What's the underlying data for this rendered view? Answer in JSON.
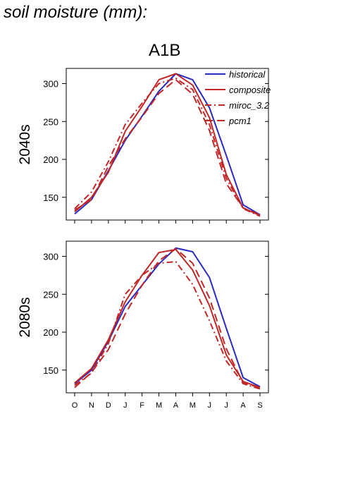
{
  "header": {
    "title": "soil moisture (mm):",
    "scenario": "A1B"
  },
  "colors": {
    "historical": "#2a2ac0",
    "scenario": "#c02626"
  },
  "chart_data": [
    {
      "type": "line",
      "panel_label": "2040s",
      "categories": [
        "O",
        "N",
        "D",
        "J",
        "F",
        "M",
        "A",
        "M",
        "J",
        "J",
        "A",
        "S"
      ],
      "ylim": [
        120,
        320
      ],
      "yticks": [
        150,
        200,
        250,
        300
      ],
      "legend_position": "top-right",
      "series": [
        {
          "name": "historical",
          "style": "solid",
          "values": [
            128,
            147,
            185,
            225,
            257,
            290,
            313,
            305,
            268,
            205,
            140,
            127
          ]
        },
        {
          "name": "composite",
          "style": "solid",
          "values": [
            131,
            150,
            183,
            237,
            270,
            305,
            313,
            298,
            255,
            180,
            136,
            126
          ]
        },
        {
          "name": "miroc_3.2",
          "style": "dashdot",
          "values": [
            135,
            157,
            197,
            246,
            274,
            300,
            307,
            292,
            246,
            175,
            135,
            125
          ]
        },
        {
          "name": "pcm1",
          "style": "dash",
          "values": [
            133,
            147,
            191,
            227,
            256,
            287,
            305,
            286,
            238,
            168,
            136,
            127
          ]
        }
      ]
    },
    {
      "type": "line",
      "panel_label": "2080s",
      "categories": [
        "O",
        "N",
        "D",
        "J",
        "F",
        "M",
        "A",
        "M",
        "J",
        "J",
        "A",
        "S"
      ],
      "ylim": [
        120,
        320
      ],
      "yticks": [
        150,
        200,
        250,
        300
      ],
      "legend_position": "none",
      "series": [
        {
          "name": "historical",
          "style": "solid",
          "values": [
            132,
            150,
            188,
            234,
            262,
            290,
            311,
            306,
            272,
            205,
            140,
            128
          ]
        },
        {
          "name": "composite",
          "style": "solid",
          "values": [
            133,
            152,
            190,
            240,
            275,
            305,
            309,
            282,
            235,
            170,
            135,
            127
          ]
        },
        {
          "name": "miroc_3.2",
          "style": "dashdot",
          "values": [
            130,
            146,
            185,
            250,
            275,
            291,
            293,
            263,
            215,
            162,
            132,
            125
          ]
        },
        {
          "name": "pcm1",
          "style": "dash",
          "values": [
            127,
            147,
            177,
            224,
            262,
            294,
            310,
            291,
            245,
            178,
            133,
            127
          ]
        }
      ]
    }
  ]
}
